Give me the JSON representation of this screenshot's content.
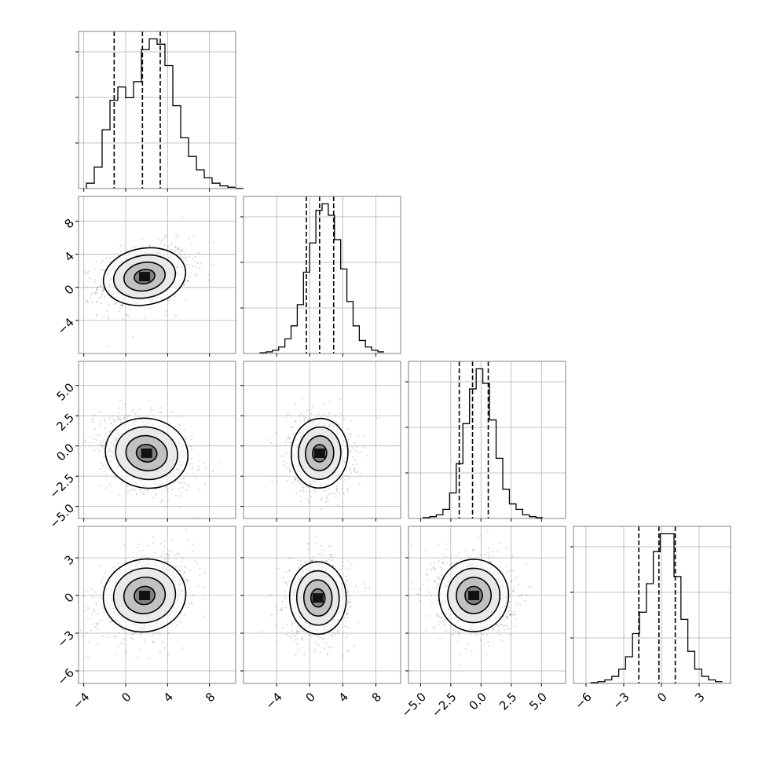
{
  "chart_data": {
    "type": "corner",
    "n_params": 4,
    "grid": true,
    "quantiles": [
      0.16,
      0.5,
      0.84
    ],
    "params": [
      {
        "range": [
          -4.5,
          10.5
        ],
        "ticks": [
          -4,
          0,
          4,
          8
        ],
        "tick_labels": [
          "−4",
          "0",
          "4",
          "8"
        ],
        "quantile_values": [
          -1.1,
          1.6,
          3.3
        ],
        "hist": {
          "bin_start": -3.75,
          "bin_width": 0.75,
          "counts": [
            2,
            8,
            22,
            33,
            38,
            34,
            40,
            52,
            56,
            54,
            46,
            31,
            19,
            12,
            7,
            4,
            2,
            1,
            0.5,
            0
          ]
        }
      },
      {
        "range": [
          -8,
          11
        ],
        "ticks": [
          -4,
          0,
          4,
          8
        ],
        "tick_labels": [
          "−4",
          "0",
          "4",
          "8"
        ],
        "quantile_values": [
          -0.4,
          1.2,
          2.9
        ],
        "hist": {
          "bin_start": -6.0,
          "bin_width": 0.75,
          "counts": [
            0.5,
            1,
            2,
            4,
            9,
            17,
            30,
            50,
            68,
            88,
            92,
            85,
            70,
            52,
            32,
            17,
            8,
            4,
            2,
            1
          ]
        }
      },
      {
        "range": [
          -6,
          7
        ],
        "ticks": [
          -5.0,
          -2.5,
          0.0,
          2.5,
          5.0
        ],
        "tick_labels": [
          "−5.0",
          "−2.5",
          "0.0",
          "2.5",
          "5.0"
        ],
        "quantile_values": [
          -1.8,
          -0.7,
          0.6
        ],
        "hist": {
          "bin_start": -4.8,
          "bin_width": 0.55,
          "counts": [
            0.5,
            1,
            2,
            5,
            14,
            30,
            52,
            71,
            82,
            74,
            54,
            33,
            16,
            8,
            5,
            2,
            1,
            0.5
          ]
        }
      },
      {
        "range": [
          -7,
          5.5
        ],
        "ticks": [
          -6,
          -3,
          0,
          3
        ],
        "tick_labels": [
          "−6",
          "−3",
          "0",
          "3"
        ],
        "quantile_values": [
          -1.8,
          -0.2,
          1.1
        ],
        "hist": {
          "bin_start": -5.6,
          "bin_width": 0.55,
          "counts": [
            0.5,
            1,
            2,
            4,
            8,
            15,
            28,
            40,
            56,
            74,
            84,
            84,
            60,
            36,
            18,
            8,
            4,
            2,
            1
          ]
        }
      }
    ],
    "pairs": [
      {
        "x": 0,
        "y": 1,
        "center": [
          1.8,
          1.3
        ],
        "sd": [
          2.2,
          1.9
        ],
        "corr": 0.3
      },
      {
        "x": 0,
        "y": 2,
        "center": [
          2.0,
          -0.6
        ],
        "sd": [
          2.2,
          1.6
        ],
        "corr": -0.3
      },
      {
        "x": 1,
        "y": 2,
        "center": [
          1.2,
          -0.6
        ],
        "sd": [
          1.9,
          1.6
        ],
        "corr": -0.1
      },
      {
        "x": 0,
        "y": 3,
        "center": [
          1.8,
          0.0
        ],
        "sd": [
          2.2,
          1.6
        ],
        "corr": 0.35
      },
      {
        "x": 1,
        "y": 3,
        "center": [
          1.0,
          -0.2
        ],
        "sd": [
          1.9,
          1.6
        ],
        "corr": 0.05
      },
      {
        "x": 2,
        "y": 3,
        "center": [
          -0.6,
          0.0
        ],
        "sd": [
          1.6,
          1.6
        ],
        "corr": -0.1
      }
    ],
    "contour_levels": [
      0.5,
      1.0,
      1.5,
      2.0
    ]
  }
}
